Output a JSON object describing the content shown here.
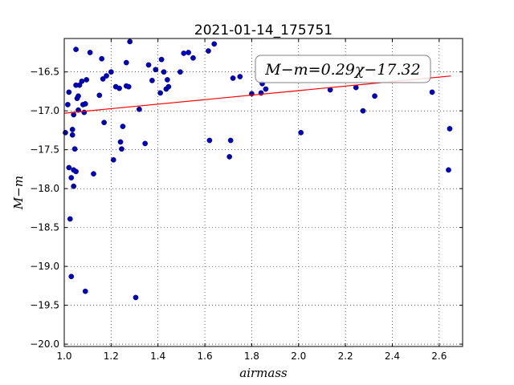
{
  "chart_data": {
    "type": "scatter",
    "title": "2021-01-14_175751",
    "xlabel": "airmass",
    "ylabel": "M−m",
    "xlim": [
      1.0,
      2.7
    ],
    "ylim": [
      -20.03,
      -16.07
    ],
    "y_inverted": true,
    "grid": true,
    "x_ticks": [
      1.0,
      1.2,
      1.4,
      1.6,
      1.8,
      2.0,
      2.2,
      2.4,
      2.6
    ],
    "x_tick_labels": [
      "1.0",
      "1.2",
      "1.4",
      "1.6",
      "1.8",
      "2.0",
      "2.2",
      "2.4",
      "2.6"
    ],
    "y_ticks": [
      -16.5,
      -17.0,
      -17.5,
      -18.0,
      -18.5,
      -19.0,
      -19.5,
      -20.0
    ],
    "y_tick_labels": [
      "−16.5",
      "−17.0",
      "−17.5",
      "−18.0",
      "−18.5",
      "−19.0",
      "−19.5",
      "−20.0"
    ],
    "point_color": "#0000bf",
    "fit_color": "#ff0000",
    "fit": {
      "slope": 0.29,
      "intercept": -17.32,
      "x_range": [
        1.0,
        2.65
      ]
    },
    "annotation": {
      "text": "M−m=0.29χ−17.32",
      "placement": "top-right"
    },
    "points": [
      {
        "x": 1.005,
        "y": -17.28
      },
      {
        "x": 1.015,
        "y": -16.92
      },
      {
        "x": 1.02,
        "y": -16.76
      },
      {
        "x": 1.02,
        "y": -17.73
      },
      {
        "x": 1.025,
        "y": -18.39
      },
      {
        "x": 1.03,
        "y": -17.86
      },
      {
        "x": 1.03,
        "y": -19.13
      },
      {
        "x": 1.035,
        "y": -17.24
      },
      {
        "x": 1.035,
        "y": -17.31
      },
      {
        "x": 1.04,
        "y": -17.05
      },
      {
        "x": 1.04,
        "y": -17.76
      },
      {
        "x": 1.04,
        "y": -17.97
      },
      {
        "x": 1.045,
        "y": -17.49
      },
      {
        "x": 1.05,
        "y": -17.78
      },
      {
        "x": 1.05,
        "y": -16.21
      },
      {
        "x": 1.05,
        "y": -16.67
      },
      {
        "x": 1.055,
        "y": -16.84
      },
      {
        "x": 1.06,
        "y": -16.81
      },
      {
        "x": 1.06,
        "y": -16.99
      },
      {
        "x": 1.065,
        "y": -16.67
      },
      {
        "x": 1.075,
        "y": -16.62
      },
      {
        "x": 1.08,
        "y": -16.92
      },
      {
        "x": 1.085,
        "y": -17.02
      },
      {
        "x": 1.09,
        "y": -19.32
      },
      {
        "x": 1.09,
        "y": -16.91
      },
      {
        "x": 1.095,
        "y": -16.6
      },
      {
        "x": 1.11,
        "y": -16.25
      },
      {
        "x": 1.125,
        "y": -17.81
      },
      {
        "x": 1.15,
        "y": -16.8
      },
      {
        "x": 1.16,
        "y": -16.33
      },
      {
        "x": 1.165,
        "y": -16.59
      },
      {
        "x": 1.17,
        "y": -17.15
      },
      {
        "x": 1.18,
        "y": -16.55
      },
      {
        "x": 1.2,
        "y": -16.5
      },
      {
        "x": 1.21,
        "y": -17.63
      },
      {
        "x": 1.22,
        "y": -16.69
      },
      {
        "x": 1.235,
        "y": -16.71
      },
      {
        "x": 1.24,
        "y": -17.4
      },
      {
        "x": 1.245,
        "y": -17.49
      },
      {
        "x": 1.25,
        "y": -17.2
      },
      {
        "x": 1.265,
        "y": -16.38
      },
      {
        "x": 1.265,
        "y": -16.68
      },
      {
        "x": 1.275,
        "y": -16.69
      },
      {
        "x": 1.28,
        "y": -16.11
      },
      {
        "x": 1.305,
        "y": -19.4
      },
      {
        "x": 1.32,
        "y": -16.98
      },
      {
        "x": 1.345,
        "y": -17.42
      },
      {
        "x": 1.36,
        "y": -16.41
      },
      {
        "x": 1.375,
        "y": -16.61
      },
      {
        "x": 1.39,
        "y": -16.47
      },
      {
        "x": 1.41,
        "y": -16.77
      },
      {
        "x": 1.415,
        "y": -16.34
      },
      {
        "x": 1.425,
        "y": -16.5
      },
      {
        "x": 1.435,
        "y": -16.72
      },
      {
        "x": 1.44,
        "y": -16.6
      },
      {
        "x": 1.445,
        "y": -16.69
      },
      {
        "x": 1.495,
        "y": -16.5
      },
      {
        "x": 1.51,
        "y": -16.26
      },
      {
        "x": 1.53,
        "y": -16.25
      },
      {
        "x": 1.55,
        "y": -16.32
      },
      {
        "x": 1.615,
        "y": -16.23
      },
      {
        "x": 1.62,
        "y": -17.38
      },
      {
        "x": 1.64,
        "y": -16.14
      },
      {
        "x": 1.705,
        "y": -17.59
      },
      {
        "x": 1.71,
        "y": -17.38
      },
      {
        "x": 1.72,
        "y": -16.58
      },
      {
        "x": 1.75,
        "y": -16.56
      },
      {
        "x": 1.8,
        "y": -16.78
      },
      {
        "x": 1.84,
        "y": -16.77
      },
      {
        "x": 1.845,
        "y": -16.65
      },
      {
        "x": 1.86,
        "y": -16.72
      },
      {
        "x": 2.01,
        "y": -17.28
      },
      {
        "x": 2.135,
        "y": -16.73
      },
      {
        "x": 2.245,
        "y": -16.7
      },
      {
        "x": 2.275,
        "y": -17.0
      },
      {
        "x": 2.325,
        "y": -16.81
      },
      {
        "x": 2.57,
        "y": -16.76
      },
      {
        "x": 2.64,
        "y": -17.76
      },
      {
        "x": 2.645,
        "y": -17.23
      }
    ]
  }
}
